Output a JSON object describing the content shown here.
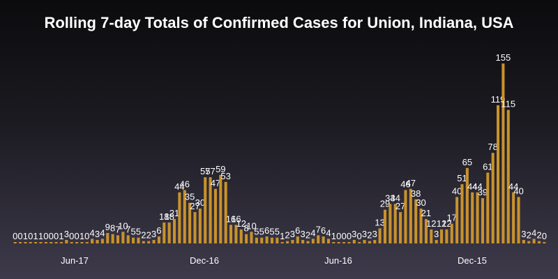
{
  "chart_data": {
    "type": "bar",
    "title": "Rolling 7-day Totals of Confirmed Cases for Union, Indiana, USA",
    "xlabel": "",
    "ylabel": "",
    "ylim": [
      0,
      160
    ],
    "grid": false,
    "bar_color": "#c9922b",
    "x_tick_labels": [
      "Jun-17",
      "Dec-16",
      "Jun-16",
      "Dec-15"
    ],
    "values": [
      0,
      0,
      1,
      0,
      1,
      1,
      0,
      0,
      0,
      1,
      3,
      0,
      0,
      1,
      0,
      4,
      3,
      4,
      9,
      8,
      7,
      10,
      7,
      5,
      5,
      2,
      2,
      3,
      6,
      18,
      18,
      21,
      44,
      46,
      35,
      27,
      30,
      57,
      57,
      47,
      59,
      53,
      16,
      16,
      12,
      8,
      10,
      5,
      5,
      6,
      5,
      5,
      1,
      2,
      3,
      6,
      3,
      2,
      4,
      7,
      6,
      4,
      1,
      0,
      0,
      0,
      3,
      0,
      3,
      2,
      3,
      13,
      29,
      34,
      34,
      27,
      46,
      47,
      38,
      30,
      21,
      12,
      3,
      12,
      12,
      17,
      40,
      51,
      65,
      44,
      44,
      39,
      61,
      78,
      119,
      155,
      115,
      44,
      40,
      3,
      2,
      4,
      2,
      0
    ]
  }
}
